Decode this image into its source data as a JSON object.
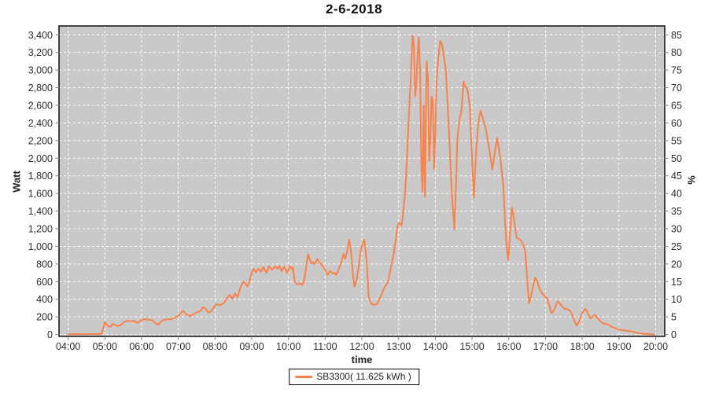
{
  "title": "2-6-2018",
  "colors": {
    "line": "#f8824a",
    "plot_background": "#c9c9c9",
    "grid": "#ffffff",
    "plot_border": "#000000",
    "tick_text": "#2e2e2e",
    "tick_mark": "#808080",
    "page_background": "#ffffff"
  },
  "legend": {
    "label": "SB3300( 11.625 kWh )"
  },
  "chart_data": {
    "type": "line",
    "title": "2-6-2018",
    "grid": true,
    "legend_position": "bottom-center",
    "x_axis": {
      "title": "time",
      "tick_labels": [
        "04:00",
        "05:00",
        "06:00",
        "07:00",
        "08:00",
        "09:00",
        "10:00",
        "11:00",
        "12:00",
        "13:00",
        "14:00",
        "15:00",
        "16:00",
        "17:00",
        "18:00",
        "19:00",
        "20:00"
      ]
    },
    "y_axis_left": {
      "title": "Watt",
      "tick_values": [
        0,
        200,
        400,
        600,
        800,
        1000,
        1200,
        1400,
        1600,
        1800,
        2000,
        2200,
        2400,
        2600,
        2800,
        3000,
        3200,
        3400
      ],
      "tick_labels": [
        "0",
        "200",
        "400",
        "600",
        "800",
        "1,000",
        "1,200",
        "1,400",
        "1,600",
        "1,800",
        "2,000",
        "2,200",
        "2,400",
        "2,600",
        "2,800",
        "3,000",
        "3,200",
        "3,400"
      ],
      "range": [
        0,
        3500
      ]
    },
    "y_axis_right": {
      "title": "%",
      "tick_values": [
        0,
        5,
        10,
        15,
        20,
        25,
        30,
        35,
        40,
        45,
        50,
        55,
        60,
        65,
        70,
        75,
        80,
        85
      ],
      "range": [
        0,
        87.5
      ]
    },
    "series": [
      {
        "name": "SB3300( 11.625 kWh )",
        "color": "#f8824a",
        "points": [
          [
            "04:00",
            5
          ],
          [
            "04:10",
            4
          ],
          [
            "04:20",
            5
          ],
          [
            "04:30",
            4
          ],
          [
            "04:40",
            5
          ],
          [
            "04:50",
            5
          ],
          [
            "04:55",
            8
          ],
          [
            "04:57",
            60
          ],
          [
            "05:00",
            140
          ],
          [
            "05:03",
            110
          ],
          [
            "05:06",
            95
          ],
          [
            "05:09",
            85
          ],
          [
            "05:13",
            120
          ],
          [
            "05:17",
            110
          ],
          [
            "05:21",
            95
          ],
          [
            "05:25",
            105
          ],
          [
            "05:29",
            125
          ],
          [
            "05:33",
            148
          ],
          [
            "05:38",
            155
          ],
          [
            "05:43",
            150
          ],
          [
            "05:48",
            157
          ],
          [
            "05:53",
            132
          ],
          [
            "05:57",
            150
          ],
          [
            "06:00",
            165
          ],
          [
            "06:04",
            175
          ],
          [
            "06:08",
            170
          ],
          [
            "06:13",
            168
          ],
          [
            "06:18",
            160
          ],
          [
            "06:23",
            128
          ],
          [
            "06:27",
            110
          ],
          [
            "06:31",
            140
          ],
          [
            "06:35",
            165
          ],
          [
            "06:40",
            170
          ],
          [
            "06:44",
            176
          ],
          [
            "06:48",
            172
          ],
          [
            "06:52",
            185
          ],
          [
            "06:56",
            195
          ],
          [
            "07:00",
            212
          ],
          [
            "07:04",
            240
          ],
          [
            "07:08",
            270
          ],
          [
            "07:11",
            245
          ],
          [
            "07:14",
            225
          ],
          [
            "07:19",
            208
          ],
          [
            "07:23",
            222
          ],
          [
            "07:27",
            240
          ],
          [
            "07:30",
            252
          ],
          [
            "07:34",
            262
          ],
          [
            "07:37",
            272
          ],
          [
            "07:40",
            310
          ],
          [
            "07:44",
            295
          ],
          [
            "07:47",
            265
          ],
          [
            "07:49",
            250
          ],
          [
            "07:53",
            262
          ],
          [
            "07:57",
            295
          ],
          [
            "08:00",
            330
          ],
          [
            "08:04",
            345
          ],
          [
            "08:08",
            332
          ],
          [
            "08:12",
            348
          ],
          [
            "08:15",
            360
          ],
          [
            "08:19",
            410
          ],
          [
            "08:24",
            450
          ],
          [
            "08:28",
            405
          ],
          [
            "08:33",
            465
          ],
          [
            "08:37",
            425
          ],
          [
            "08:41",
            520
          ],
          [
            "08:45",
            585
          ],
          [
            "08:47",
            600
          ],
          [
            "08:50",
            570
          ],
          [
            "08:53",
            545
          ],
          [
            "08:57",
            620
          ],
          [
            "09:00",
            700
          ],
          [
            "09:03",
            745
          ],
          [
            "09:07",
            705
          ],
          [
            "09:11",
            750
          ],
          [
            "09:15",
            712
          ],
          [
            "09:19",
            765
          ],
          [
            "09:24",
            700
          ],
          [
            "09:28",
            775
          ],
          [
            "09:33",
            735
          ],
          [
            "09:38",
            772
          ],
          [
            "09:42",
            745
          ],
          [
            "09:45",
            780
          ],
          [
            "09:49",
            720
          ],
          [
            "09:53",
            770
          ],
          [
            "09:58",
            700
          ],
          [
            "10:02",
            775
          ],
          [
            "10:05",
            742
          ],
          [
            "10:07",
            765
          ],
          [
            "10:10",
            615
          ],
          [
            "10:13",
            575
          ],
          [
            "10:16",
            565
          ],
          [
            "10:19",
            585
          ],
          [
            "10:22",
            560
          ],
          [
            "10:25",
            592
          ],
          [
            "10:29",
            765
          ],
          [
            "10:32",
            910
          ],
          [
            "10:35",
            850
          ],
          [
            "10:37",
            805
          ],
          [
            "10:40",
            822
          ],
          [
            "10:43",
            798
          ],
          [
            "10:47",
            855
          ],
          [
            "10:51",
            812
          ],
          [
            "10:55",
            788
          ],
          [
            "11:00",
            735
          ],
          [
            "11:04",
            675
          ],
          [
            "11:08",
            722
          ],
          [
            "11:12",
            692
          ],
          [
            "11:15",
            700
          ],
          [
            "11:18",
            675
          ],
          [
            "11:22",
            740
          ],
          [
            "11:26",
            812
          ],
          [
            "11:30",
            915
          ],
          [
            "11:33",
            858
          ],
          [
            "11:36",
            940
          ],
          [
            "11:39",
            1075
          ],
          [
            "11:42",
            960
          ],
          [
            "11:44",
            800
          ],
          [
            "11:46",
            640
          ],
          [
            "11:48",
            540
          ],
          [
            "11:51",
            610
          ],
          [
            "11:54",
            740
          ],
          [
            "11:58",
            950
          ],
          [
            "12:01",
            1020
          ],
          [
            "12:04",
            1075
          ],
          [
            "12:06",
            950
          ],
          [
            "12:08",
            800
          ],
          [
            "12:11",
            435
          ],
          [
            "12:14",
            370
          ],
          [
            "12:16",
            345
          ],
          [
            "12:20",
            338
          ],
          [
            "12:23",
            342
          ],
          [
            "12:25",
            348
          ],
          [
            "12:28",
            390
          ],
          [
            "12:31",
            435
          ],
          [
            "12:36",
            520
          ],
          [
            "12:40",
            565
          ],
          [
            "12:43",
            610
          ],
          [
            "12:48",
            780
          ],
          [
            "12:52",
            920
          ],
          [
            "12:55",
            1060
          ],
          [
            "12:58",
            1230
          ],
          [
            "13:01",
            1265
          ],
          [
            "13:03",
            1250
          ],
          [
            "13:05",
            1240
          ],
          [
            "13:08",
            1420
          ],
          [
            "13:11",
            1650
          ],
          [
            "13:14",
            2050
          ],
          [
            "13:17",
            2500
          ],
          [
            "13:20",
            2950
          ],
          [
            "13:23",
            3390
          ],
          [
            "13:25",
            3280
          ],
          [
            "13:27",
            2700
          ],
          [
            "13:29",
            2850
          ],
          [
            "13:31",
            3150
          ],
          [
            "13:33",
            3370
          ],
          [
            "13:35",
            3000
          ],
          [
            "13:37",
            1950
          ],
          [
            "13:39",
            1620
          ],
          [
            "13:41",
            2600
          ],
          [
            "13:43",
            1560
          ],
          [
            "13:45",
            2800
          ],
          [
            "13:46",
            3100
          ],
          [
            "13:48",
            2880
          ],
          [
            "13:50",
            1970
          ],
          [
            "13:52",
            2250
          ],
          [
            "13:54",
            2700
          ],
          [
            "13:56",
            2650
          ],
          [
            "13:58",
            1880
          ],
          [
            "14:00",
            2300
          ],
          [
            "14:02",
            2880
          ],
          [
            "14:05",
            3150
          ],
          [
            "14:08",
            3330
          ],
          [
            "14:11",
            3290
          ],
          [
            "14:14",
            3140
          ],
          [
            "14:17",
            3010
          ],
          [
            "14:20",
            2620
          ],
          [
            "14:24",
            2050
          ],
          [
            "14:27",
            1600
          ],
          [
            "14:31",
            1190
          ],
          [
            "14:34",
            1750
          ],
          [
            "14:36",
            2220
          ],
          [
            "14:40",
            2460
          ],
          [
            "14:43",
            2560
          ],
          [
            "14:46",
            2870
          ],
          [
            "14:49",
            2810
          ],
          [
            "14:52",
            2790
          ],
          [
            "14:56",
            2620
          ],
          [
            "15:00",
            1985
          ],
          [
            "15:03",
            1550
          ],
          [
            "15:06",
            2000
          ],
          [
            "15:09",
            2300
          ],
          [
            "15:12",
            2480
          ],
          [
            "15:14",
            2540
          ],
          [
            "15:18",
            2440
          ],
          [
            "15:22",
            2350
          ],
          [
            "15:27",
            2150
          ],
          [
            "15:30",
            2010
          ],
          [
            "15:33",
            1870
          ],
          [
            "15:37",
            2060
          ],
          [
            "15:41",
            2230
          ],
          [
            "15:44",
            2100
          ],
          [
            "15:48",
            1890
          ],
          [
            "15:51",
            1700
          ],
          [
            "15:54",
            1250
          ],
          [
            "15:57",
            950
          ],
          [
            "15:59",
            845
          ],
          [
            "16:02",
            1150
          ],
          [
            "16:05",
            1440
          ],
          [
            "16:07",
            1380
          ],
          [
            "16:10",
            1230
          ],
          [
            "16:13",
            1095
          ],
          [
            "16:17",
            1085
          ],
          [
            "16:21",
            1055
          ],
          [
            "16:24",
            1010
          ],
          [
            "16:27",
            940
          ],
          [
            "16:30",
            640
          ],
          [
            "16:33",
            355
          ],
          [
            "16:36",
            430
          ],
          [
            "16:40",
            560
          ],
          [
            "16:43",
            645
          ],
          [
            "16:46",
            615
          ],
          [
            "16:50",
            520
          ],
          [
            "16:54",
            470
          ],
          [
            "16:58",
            440
          ],
          [
            "17:02",
            420
          ],
          [
            "17:06",
            330
          ],
          [
            "17:10",
            240
          ],
          [
            "17:13",
            270
          ],
          [
            "17:16",
            315
          ],
          [
            "17:20",
            375
          ],
          [
            "17:23",
            355
          ],
          [
            "17:27",
            320
          ],
          [
            "17:31",
            292
          ],
          [
            "17:35",
            286
          ],
          [
            "17:39",
            278
          ],
          [
            "17:43",
            235
          ],
          [
            "17:47",
            160
          ],
          [
            "17:51",
            100
          ],
          [
            "17:55",
            150
          ],
          [
            "17:59",
            235
          ],
          [
            "18:03",
            280
          ],
          [
            "18:06",
            288
          ],
          [
            "18:09",
            245
          ],
          [
            "18:13",
            182
          ],
          [
            "18:16",
            195
          ],
          [
            "18:20",
            225
          ],
          [
            "18:23",
            205
          ],
          [
            "18:27",
            172
          ],
          [
            "18:31",
            140
          ],
          [
            "18:35",
            125
          ],
          [
            "18:39",
            118
          ],
          [
            "18:43",
            112
          ],
          [
            "18:47",
            92
          ],
          [
            "18:52",
            78
          ],
          [
            "18:56",
            65
          ],
          [
            "19:00",
            56
          ],
          [
            "19:05",
            50
          ],
          [
            "19:10",
            46
          ],
          [
            "19:15",
            40
          ],
          [
            "19:20",
            36
          ],
          [
            "19:25",
            28
          ],
          [
            "19:30",
            20
          ],
          [
            "19:35",
            14
          ],
          [
            "19:40",
            9
          ],
          [
            "19:45",
            6
          ],
          [
            "19:50",
            3
          ],
          [
            "19:55",
            1
          ],
          [
            "19:58",
            0
          ]
        ]
      }
    ]
  }
}
